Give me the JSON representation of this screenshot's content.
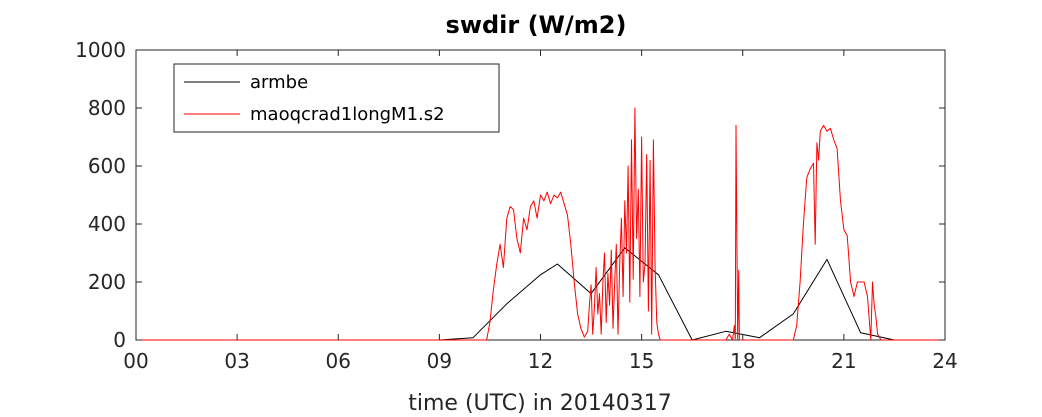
{
  "chart_data": {
    "type": "line",
    "title": "swdir  (W/m2)",
    "xlabel": "time (UTC) in 20140317",
    "ylabel": "",
    "xlim": [
      0,
      24
    ],
    "ylim": [
      0,
      1000
    ],
    "x_ticks": [
      0,
      3,
      6,
      9,
      12,
      15,
      18,
      21,
      24
    ],
    "x_tick_labels": [
      "00",
      "03",
      "06",
      "09",
      "12",
      "15",
      "18",
      "21",
      "24"
    ],
    "y_ticks": [
      0,
      200,
      400,
      600,
      800,
      1000
    ],
    "y_tick_labels": [
      "0",
      "200",
      "400",
      "600",
      "800",
      "1000"
    ],
    "grid": false,
    "legend_position": "top-left",
    "series": [
      {
        "name": "armbe",
        "color": "#000000",
        "x": [
          0,
          1,
          2,
          3,
          4,
          5,
          6,
          7,
          8,
          9,
          10,
          11,
          12,
          12.5,
          13.5,
          14.5,
          15.5,
          16.5,
          17.5,
          18.5,
          19.5,
          20.5,
          21.5,
          22.5,
          23.5,
          24
        ],
        "y": [
          0,
          0,
          0,
          0,
          0,
          0,
          0,
          0,
          0,
          0,
          8,
          125,
          225,
          262,
          160,
          318,
          225,
          0,
          30,
          8,
          90,
          278,
          25,
          0,
          0,
          0
        ]
      },
      {
        "name": "maoqcrad1longM1.s2",
        "color": "#ff0000",
        "x": [
          0,
          10.4,
          10.5,
          10.6,
          10.7,
          10.8,
          10.9,
          11.0,
          11.1,
          11.2,
          11.3,
          11.4,
          11.5,
          11.6,
          11.7,
          11.8,
          11.9,
          12.0,
          12.1,
          12.2,
          12.3,
          12.4,
          12.5,
          12.6,
          12.7,
          12.8,
          12.9,
          13.0,
          13.1,
          13.2,
          13.3,
          13.4,
          13.45,
          13.5,
          13.55,
          13.6,
          13.65,
          13.7,
          13.75,
          13.8,
          13.85,
          13.9,
          13.95,
          14.0,
          14.05,
          14.1,
          14.15,
          14.2,
          14.25,
          14.3,
          14.35,
          14.4,
          14.45,
          14.5,
          14.55,
          14.6,
          14.65,
          14.7,
          14.75,
          14.8,
          14.85,
          14.9,
          14.95,
          15.0,
          15.05,
          15.1,
          15.15,
          15.2,
          15.25,
          15.3,
          15.35,
          15.4,
          15.45,
          15.5,
          15.55,
          15.6,
          15.7,
          16.0,
          17.0,
          17.5,
          17.6,
          17.7,
          17.75,
          17.78,
          17.8,
          17.85,
          17.88,
          17.9,
          18.0,
          19.0,
          19.5,
          19.6,
          19.7,
          19.8,
          19.9,
          20.0,
          20.1,
          20.15,
          20.2,
          20.25,
          20.3,
          20.4,
          20.5,
          20.6,
          20.7,
          20.8,
          20.9,
          21.0,
          21.1,
          21.2,
          21.3,
          21.4,
          21.5,
          21.6,
          21.7,
          21.8,
          21.85,
          21.9,
          21.95,
          22.0,
          22.1,
          24
        ],
        "y": [
          0,
          0,
          60,
          170,
          260,
          330,
          250,
          420,
          460,
          450,
          350,
          300,
          420,
          380,
          460,
          480,
          420,
          500,
          480,
          510,
          470,
          500,
          490,
          510,
          470,
          430,
          330,
          200,
          90,
          40,
          10,
          30,
          120,
          190,
          20,
          110,
          250,
          90,
          160,
          20,
          200,
          300,
          60,
          230,
          120,
          310,
          40,
          200,
          330,
          20,
          260,
          420,
          150,
          480,
          300,
          600,
          130,
          690,
          210,
          800,
          350,
          520,
          150,
          700,
          200,
          260,
          640,
          100,
          620,
          20,
          690,
          250,
          60,
          20,
          0,
          0,
          0,
          0,
          0,
          0,
          20,
          0,
          50,
          5,
          740,
          0,
          240,
          0,
          0,
          0,
          0,
          50,
          200,
          400,
          560,
          590,
          610,
          330,
          680,
          620,
          720,
          740,
          720,
          730,
          690,
          660,
          480,
          380,
          360,
          200,
          150,
          200,
          200,
          200,
          150,
          0,
          200,
          120,
          80,
          20,
          0,
          0
        ]
      }
    ]
  }
}
